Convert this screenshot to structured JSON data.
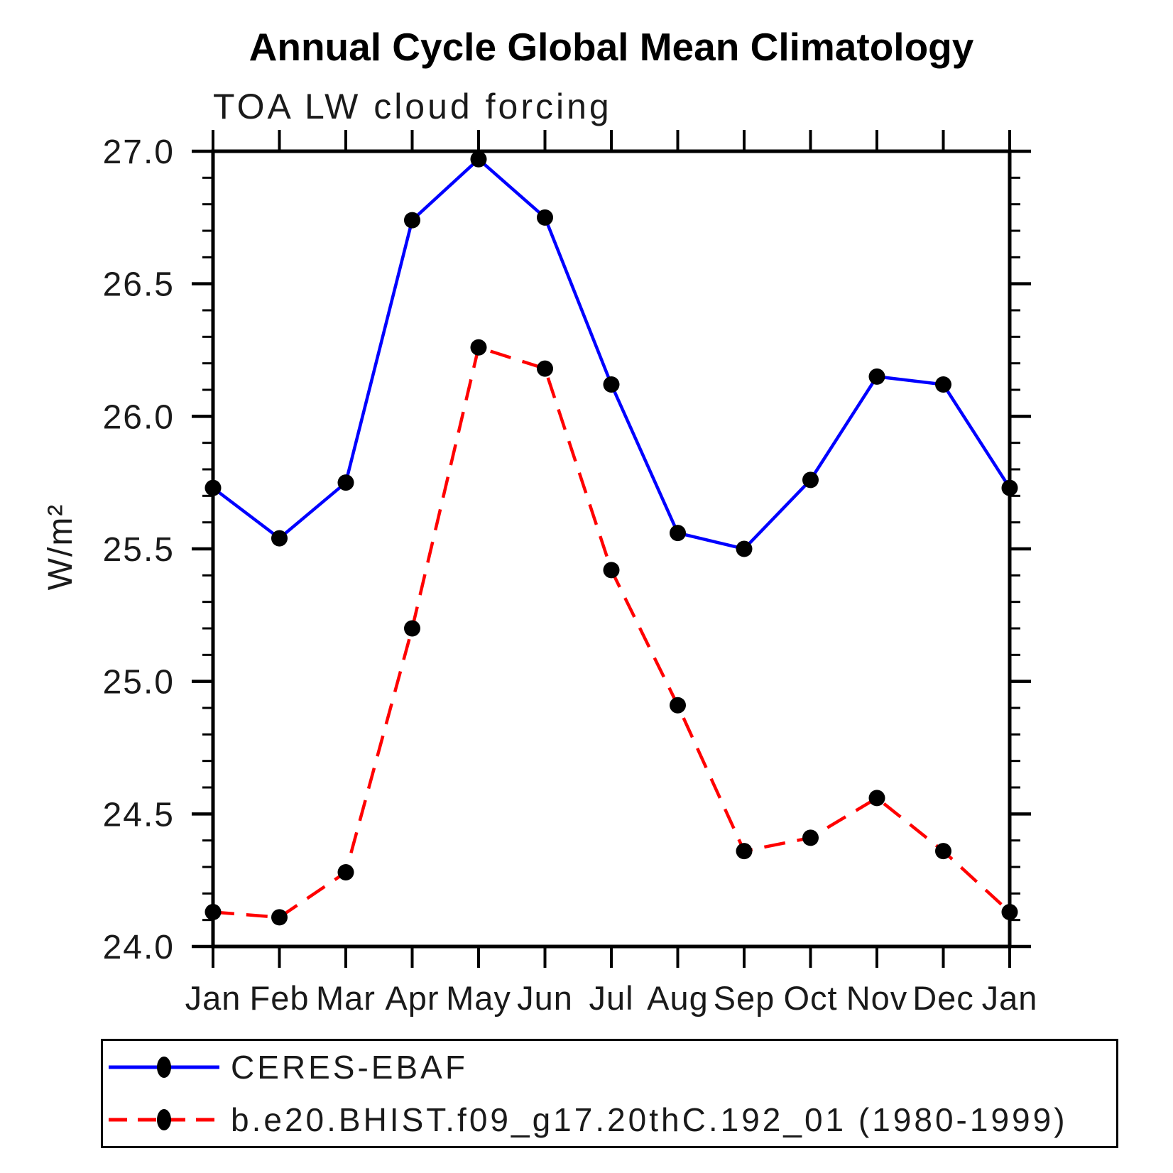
{
  "chart_data": {
    "type": "line",
    "title": "Annual Cycle Global Mean Climatology",
    "subtitle": "TOA LW cloud forcing",
    "ylabel": "W/m²",
    "xlabel": "",
    "ylim": [
      24.0,
      27.0
    ],
    "ytick_major_step": 0.5,
    "ytick_minor_step": 0.1,
    "ytick_labels": [
      "24.0",
      "24.5",
      "25.0",
      "25.5",
      "26.0",
      "26.5",
      "27.0"
    ],
    "categories": [
      "Jan",
      "Feb",
      "Mar",
      "Apr",
      "May",
      "Jun",
      "Jul",
      "Aug",
      "Sep",
      "Oct",
      "Nov",
      "Dec",
      "Jan"
    ],
    "grid": false,
    "legend_position": "bottom",
    "axis_color": "#000000",
    "marker": "circle",
    "marker_color": "#000000",
    "series": [
      {
        "name": "CERES-EBAF",
        "color": "#0000ff",
        "line_style": "solid",
        "values": [
          25.73,
          25.54,
          25.75,
          26.74,
          26.97,
          26.75,
          26.12,
          25.56,
          25.5,
          25.76,
          26.15,
          26.12,
          25.73
        ]
      },
      {
        "name": "b.e20.BHIST.f09_g17.20thC.192_01 (1980-1999)",
        "color": "#ff0000",
        "line_style": "dashed",
        "values": [
          24.13,
          24.11,
          24.28,
          25.2,
          26.26,
          26.18,
          25.42,
          24.91,
          24.36,
          24.41,
          24.56,
          24.36,
          24.13
        ]
      }
    ]
  }
}
